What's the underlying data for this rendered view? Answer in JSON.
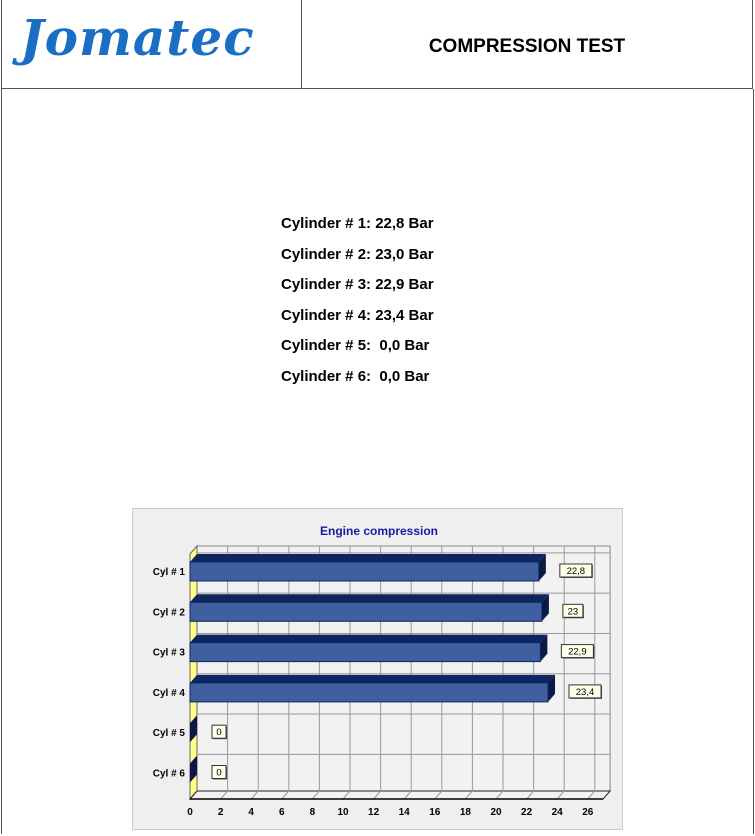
{
  "header": {
    "logo_text": "Jomatec",
    "title": "COMPRESSION TEST"
  },
  "readings": [
    "Cylinder # 1: 22,8 Bar",
    "Cylinder # 2: 23,0 Bar",
    "Cylinder # 3: 22,9 Bar",
    "Cylinder # 4: 23,4 Bar",
    "Cylinder # 5:  0,0 Bar",
    "Cylinder # 6:  0,0 Bar"
  ],
  "chart_data": {
    "type": "bar",
    "orientation": "horizontal",
    "title": "Engine compression",
    "categories": [
      "Cyl # 1",
      "Cyl # 2",
      "Cyl # 3",
      "Cyl # 4",
      "Cyl # 5",
      "Cyl # 6"
    ],
    "values": [
      22.8,
      23,
      22.9,
      23.4,
      0,
      0
    ],
    "data_labels": [
      "22,8",
      "23",
      "22,9",
      "23,4",
      "0",
      "0"
    ],
    "xlim": [
      0,
      27
    ],
    "xticks": [
      0,
      2,
      4,
      6,
      8,
      10,
      12,
      14,
      16,
      18,
      20,
      22,
      24,
      26
    ],
    "grid": true,
    "colors": {
      "bar_front": "#3f5f9f",
      "bar_top": "#0e2560",
      "bar_side": "#0a1a45",
      "wall": "#ffff88",
      "title": "#1a1aa0"
    }
  }
}
